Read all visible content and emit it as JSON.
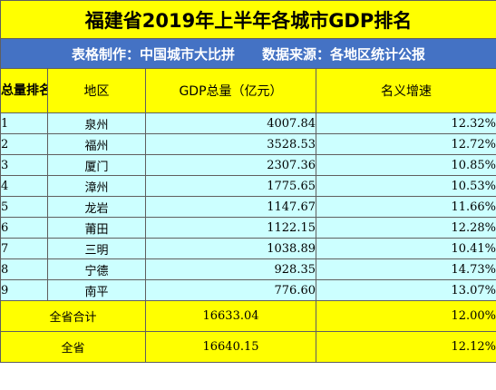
{
  "title": "福建省2019年上半年各城市GDP排名",
  "info": {
    "maker": "表格制作：中国城市大比拼",
    "source": "数据来源：各地区统计公报"
  },
  "headers": {
    "rank": "总量排名",
    "region": "地区",
    "gdp": "GDP总量（亿元）",
    "growth": "名义增速"
  },
  "rows": [
    {
      "rank": "1",
      "region": "泉州",
      "gdp": "4007.84",
      "growth": "12.32%"
    },
    {
      "rank": "2",
      "region": "福州",
      "gdp": "3528.53",
      "growth": "12.72%"
    },
    {
      "rank": "3",
      "region": "厦门",
      "gdp": "2307.36",
      "growth": "10.85%"
    },
    {
      "rank": "4",
      "region": "漳州",
      "gdp": "1775.65",
      "growth": "10.53%"
    },
    {
      "rank": "5",
      "region": "龙岩",
      "gdp": "1147.67",
      "growth": "11.66%"
    },
    {
      "rank": "6",
      "region": "莆田",
      "gdp": "1122.15",
      "growth": "12.28%"
    },
    {
      "rank": "7",
      "region": "三明",
      "gdp": "1038.89",
      "growth": "10.41%"
    },
    {
      "rank": "8",
      "region": "宁德",
      "gdp": "928.35",
      "growth": "14.73%"
    },
    {
      "rank": "9",
      "region": "南平",
      "gdp": "776.60",
      "growth": "13.07%"
    }
  ],
  "totals": [
    {
      "label": "全省合计",
      "gdp": "16633.04",
      "growth": "12.00%"
    },
    {
      "label": "全省",
      "gdp": "16640.15",
      "growth": "12.12%"
    }
  ],
  "colors": {
    "title_bg": "#ffff00",
    "info_bg": "#4472c4",
    "data_bg": "#ccffff",
    "border": "#5f5f5f"
  }
}
